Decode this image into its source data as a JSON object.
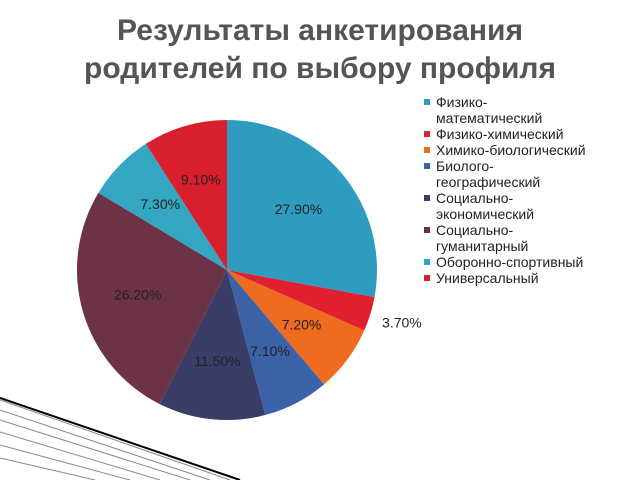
{
  "chart_data": {
    "type": "pie",
    "title": "Результаты анкетирования родителей по выбору профиля",
    "categories": [
      "Физико-математический",
      "Физико-химический",
      "Химико-биологический",
      "Биолого-географический",
      "Социально-экономический",
      "Социально-гуманитарный",
      "Оборонно-спортивный",
      "Универсальный"
    ],
    "values": [
      27.9,
      3.7,
      7.2,
      7.1,
      11.5,
      26.2,
      7.3,
      9.1
    ],
    "value_labels": [
      "27.90%",
      "3.70%",
      "7.20%",
      "7.10%",
      "11.50%",
      "26.20%",
      "7.30%",
      "9.10%"
    ],
    "colors": [
      "#2e9cc0",
      "#e0202e",
      "#ee6b1f",
      "#3b62a6",
      "#3a3d68",
      "#6c3347",
      "#33a6c2",
      "#d91e2d"
    ],
    "legend": "right"
  }
}
